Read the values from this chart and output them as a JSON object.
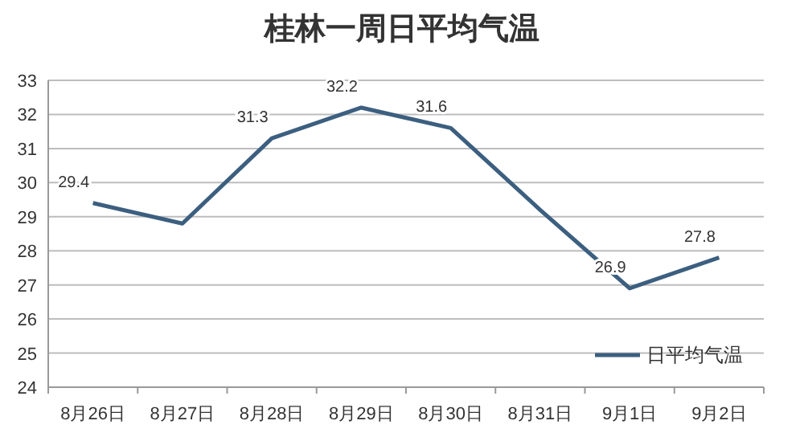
{
  "chart_data": {
    "type": "line",
    "title": "桂林一周日平均气温",
    "categories": [
      "8月26日",
      "8月27日",
      "8月28日",
      "8月29日",
      "8月30日",
      "8月31日",
      "9月1日",
      "9月2日"
    ],
    "series": [
      {
        "name": "日平均气温",
        "color": "#3c5f80",
        "values": [
          29.4,
          28.8,
          31.3,
          32.2,
          31.6,
          29.2,
          26.9,
          27.8
        ],
        "value_labels": [
          "29.4",
          null,
          "31.3",
          "32.2",
          "31.6",
          null,
          "26.9",
          "27.8"
        ]
      }
    ],
    "ylim": [
      24,
      33
    ],
    "yticks": [
      24,
      25,
      26,
      27,
      28,
      29,
      30,
      31,
      32,
      33
    ],
    "grid": "y",
    "legend": "bottom right",
    "marker": "none",
    "line_style": "solid"
  }
}
